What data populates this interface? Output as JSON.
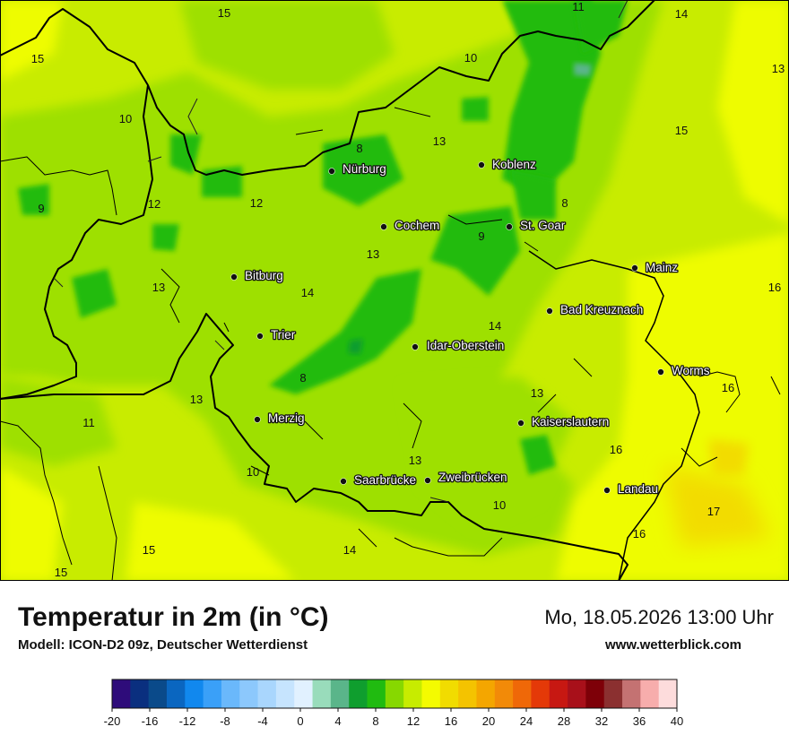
{
  "title": "Temperatur in 2m (in °C)",
  "model": "Modell: ICON-D2 09z, Deutscher Wetterdienst",
  "datetime": "Mo, 18.05.2026 13:00 Uhr",
  "site": "www.wetterblick.com",
  "cities": [
    {
      "name": "Nürburg"
    },
    {
      "name": "Koblenz"
    },
    {
      "name": "Cochem"
    },
    {
      "name": "St. Goar"
    },
    {
      "name": "Mainz"
    },
    {
      "name": "Bitburg"
    },
    {
      "name": "Bad Kreuznach"
    },
    {
      "name": "Trier"
    },
    {
      "name": "Idar-Oberstein"
    },
    {
      "name": "Worms"
    },
    {
      "name": "Merzig"
    },
    {
      "name": "Kaiserslautern"
    },
    {
      "name": "Landau"
    },
    {
      "name": "Saarbrücke"
    },
    {
      "name": "Zweibrücken"
    }
  ],
  "value_labels": [
    "15",
    "11",
    "14",
    "15",
    "13",
    "10",
    "10",
    "15",
    "8",
    "13",
    "9",
    "12",
    "12",
    "8",
    "13",
    "9",
    "16",
    "13",
    "14",
    "14",
    "8",
    "13",
    "13",
    "16",
    "11",
    "16",
    "13",
    "10",
    "10",
    "17",
    "16",
    "15",
    "14",
    "15"
  ],
  "legend": {
    "ticks": [
      "-20",
      "-16",
      "-12",
      "-8",
      "-4",
      "0",
      "4",
      "8",
      "12",
      "16",
      "20",
      "24",
      "28",
      "32",
      "36",
      "40"
    ],
    "colors": [
      "#2e0c7a",
      "#0a2f7f",
      "#0a4a8a",
      "#0a66c0",
      "#1188ee",
      "#3aa0f8",
      "#6ab8fb",
      "#8cc8fc",
      "#a9d6fd",
      "#c6e4fe",
      "#e1f1ff",
      "#99dcbb",
      "#5ab58a",
      "#0f9e2e",
      "#20bb10",
      "#87d800",
      "#c7ec00",
      "#f4fb00",
      "#f1dc00",
      "#f4c300",
      "#f4a600",
      "#f28a08",
      "#ef6808",
      "#e43908",
      "#c71812",
      "#a8101a",
      "#7e0008",
      "#8b3030",
      "#c47272",
      "#f7adac",
      "#fddcdc"
    ]
  }
}
